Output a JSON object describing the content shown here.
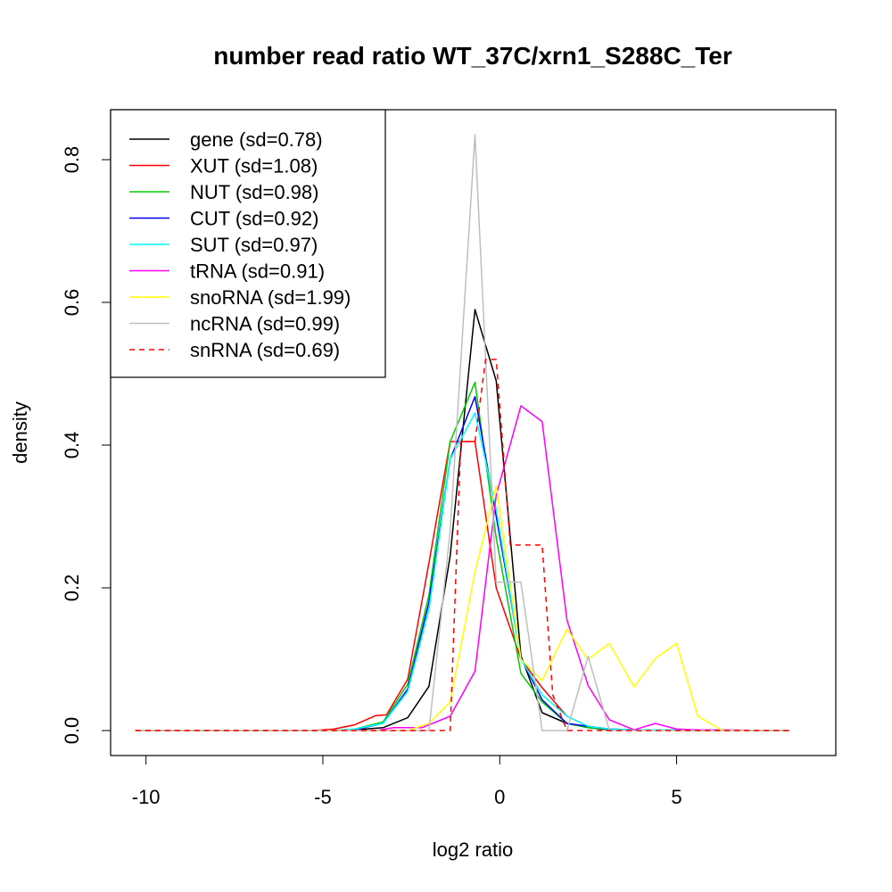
{
  "chart_data": {
    "type": "line",
    "title": "number read ratio WT_37C/xrn1_S288C_Ter",
    "xlabel": "log2 ratio",
    "ylabel": "density",
    "xlim": [
      -11,
      9.5
    ],
    "ylim": [
      -0.035,
      0.87
    ],
    "xticks": [
      -10,
      -5,
      0,
      5
    ],
    "xtick_labels": [
      "-10",
      "-5",
      "0",
      "5"
    ],
    "yticks": [
      0.0,
      0.2,
      0.4,
      0.6,
      0.8
    ],
    "ytick_labels": [
      "0.0",
      "0.2",
      "0.4",
      "0.6",
      "0.8"
    ],
    "legend_position": "top-left",
    "series": [
      {
        "name": "gene (sd=0.78)",
        "color": "#000000",
        "dash": false,
        "x": [
          -10.3,
          -5,
          -4.1,
          -3.3,
          -2.6,
          -2,
          -1.4,
          -0.7,
          -0.1,
          0.6,
          1.2,
          1.9,
          2.5,
          3.1,
          8.2
        ],
        "y": [
          0,
          0,
          0.001,
          0.004,
          0.018,
          0.062,
          0.245,
          0.59,
          0.49,
          0.105,
          0.025,
          0.01,
          0.004,
          0.001,
          0
        ]
      },
      {
        "name": "XUT (sd=1.08)",
        "color": "#ff0000",
        "dash": false,
        "x": [
          -10.3,
          -5.3,
          -4.7,
          -4.1,
          -3.5,
          -3.2,
          -2.6,
          -2,
          -1.4,
          -0.7,
          -0.1,
          0.6,
          1.2,
          1.9,
          2.5,
          3.1,
          3.8,
          8.2
        ],
        "y": [
          0,
          0,
          0.002,
          0.008,
          0.021,
          0.022,
          0.072,
          0.235,
          0.405,
          0.405,
          0.2,
          0.1,
          0.06,
          0.02,
          0.006,
          0.002,
          0.001,
          0
        ]
      },
      {
        "name": "NUT (sd=0.98)",
        "color": "#00cd00",
        "dash": false,
        "x": [
          -10.3,
          -4.7,
          -4.1,
          -3.3,
          -2.6,
          -2,
          -1.4,
          -0.7,
          -0.1,
          0.6,
          1.2,
          1.9,
          2.5,
          3.1,
          3.8,
          4.4,
          5,
          8.2
        ],
        "y": [
          0,
          0,
          0.002,
          0.012,
          0.065,
          0.19,
          0.405,
          0.488,
          0.27,
          0.08,
          0.04,
          0.01,
          0.004,
          0.002,
          0.001,
          0.001,
          0,
          0
        ]
      },
      {
        "name": "CUT (sd=0.92)",
        "color": "#0000ff",
        "dash": false,
        "x": [
          -10.3,
          -4.7,
          -4.1,
          -3.3,
          -2.6,
          -2,
          -1.4,
          -0.7,
          -0.1,
          0.6,
          1.2,
          1.9,
          2.5,
          3.1,
          3.8,
          8.2
        ],
        "y": [
          0,
          0,
          0.001,
          0.01,
          0.058,
          0.18,
          0.38,
          0.468,
          0.3,
          0.102,
          0.043,
          0.01,
          0.006,
          0.002,
          0.001,
          0
        ]
      },
      {
        "name": "SUT (sd=0.97)",
        "color": "#00ffff",
        "dash": false,
        "x": [
          -10.3,
          -4.7,
          -4.1,
          -3.3,
          -2.6,
          -2,
          -1.4,
          -0.7,
          -0.1,
          0.6,
          1.2,
          1.9,
          2.5,
          3.1,
          3.8,
          4.4,
          8.2
        ],
        "y": [
          0,
          0,
          0.002,
          0.01,
          0.055,
          0.17,
          0.38,
          0.445,
          0.31,
          0.1,
          0.05,
          0.02,
          0.006,
          0.002,
          0.001,
          0.001,
          0
        ]
      },
      {
        "name": "tRNA (sd=0.91)",
        "color": "#ff00ff",
        "dash": false,
        "x": [
          -10.3,
          -3.5,
          -3,
          -2.2,
          -1.4,
          -0.7,
          -0.1,
          0.6,
          1.2,
          1.9,
          2.5,
          3.1,
          3.8,
          4.4,
          5,
          5.6,
          8.2
        ],
        "y": [
          0,
          0,
          0.004,
          0.004,
          0.02,
          0.083,
          0.33,
          0.455,
          0.433,
          0.155,
          0.063,
          0.015,
          0.001,
          0.01,
          0.002,
          0.001,
          0
        ]
      },
      {
        "name": "snoRNA (sd=1.99)",
        "color": "#ffff00",
        "dash": false,
        "x": [
          -10.3,
          -2.6,
          -2,
          -1.4,
          -0.7,
          -0.1,
          0.6,
          1.2,
          1.9,
          2.5,
          3.1,
          3.8,
          4.4,
          5,
          5.6,
          6.3,
          8.2
        ],
        "y": [
          0,
          0,
          0.01,
          0.04,
          0.222,
          0.343,
          0.1,
          0.07,
          0.142,
          0.1,
          0.122,
          0.061,
          0.101,
          0.122,
          0.02,
          0,
          0
        ]
      },
      {
        "name": "ncRNA (sd=0.99)",
        "color": "#bebebe",
        "dash": false,
        "x": [
          -10.3,
          -2,
          -1.4,
          -0.7,
          -0.1,
          0.6,
          1.2,
          1.9,
          2.5,
          3.1,
          8.2
        ],
        "y": [
          0,
          0,
          0.28,
          0.835,
          0.208,
          0.208,
          0,
          0,
          0.104,
          0,
          0
        ]
      },
      {
        "name": "snRNA (sd=0.69)",
        "color": "#ff0000",
        "dash": true,
        "x": [
          -10.3,
          -1.4,
          -1.1,
          -0.7,
          -0.4,
          -0.1,
          0.3,
          0.6,
          1.2,
          1.5,
          1.9,
          8.2
        ],
        "y": [
          0,
          0,
          0.405,
          0.405,
          0.52,
          0.52,
          0.26,
          0.26,
          0.26,
          0.05,
          0,
          0
        ]
      }
    ]
  }
}
